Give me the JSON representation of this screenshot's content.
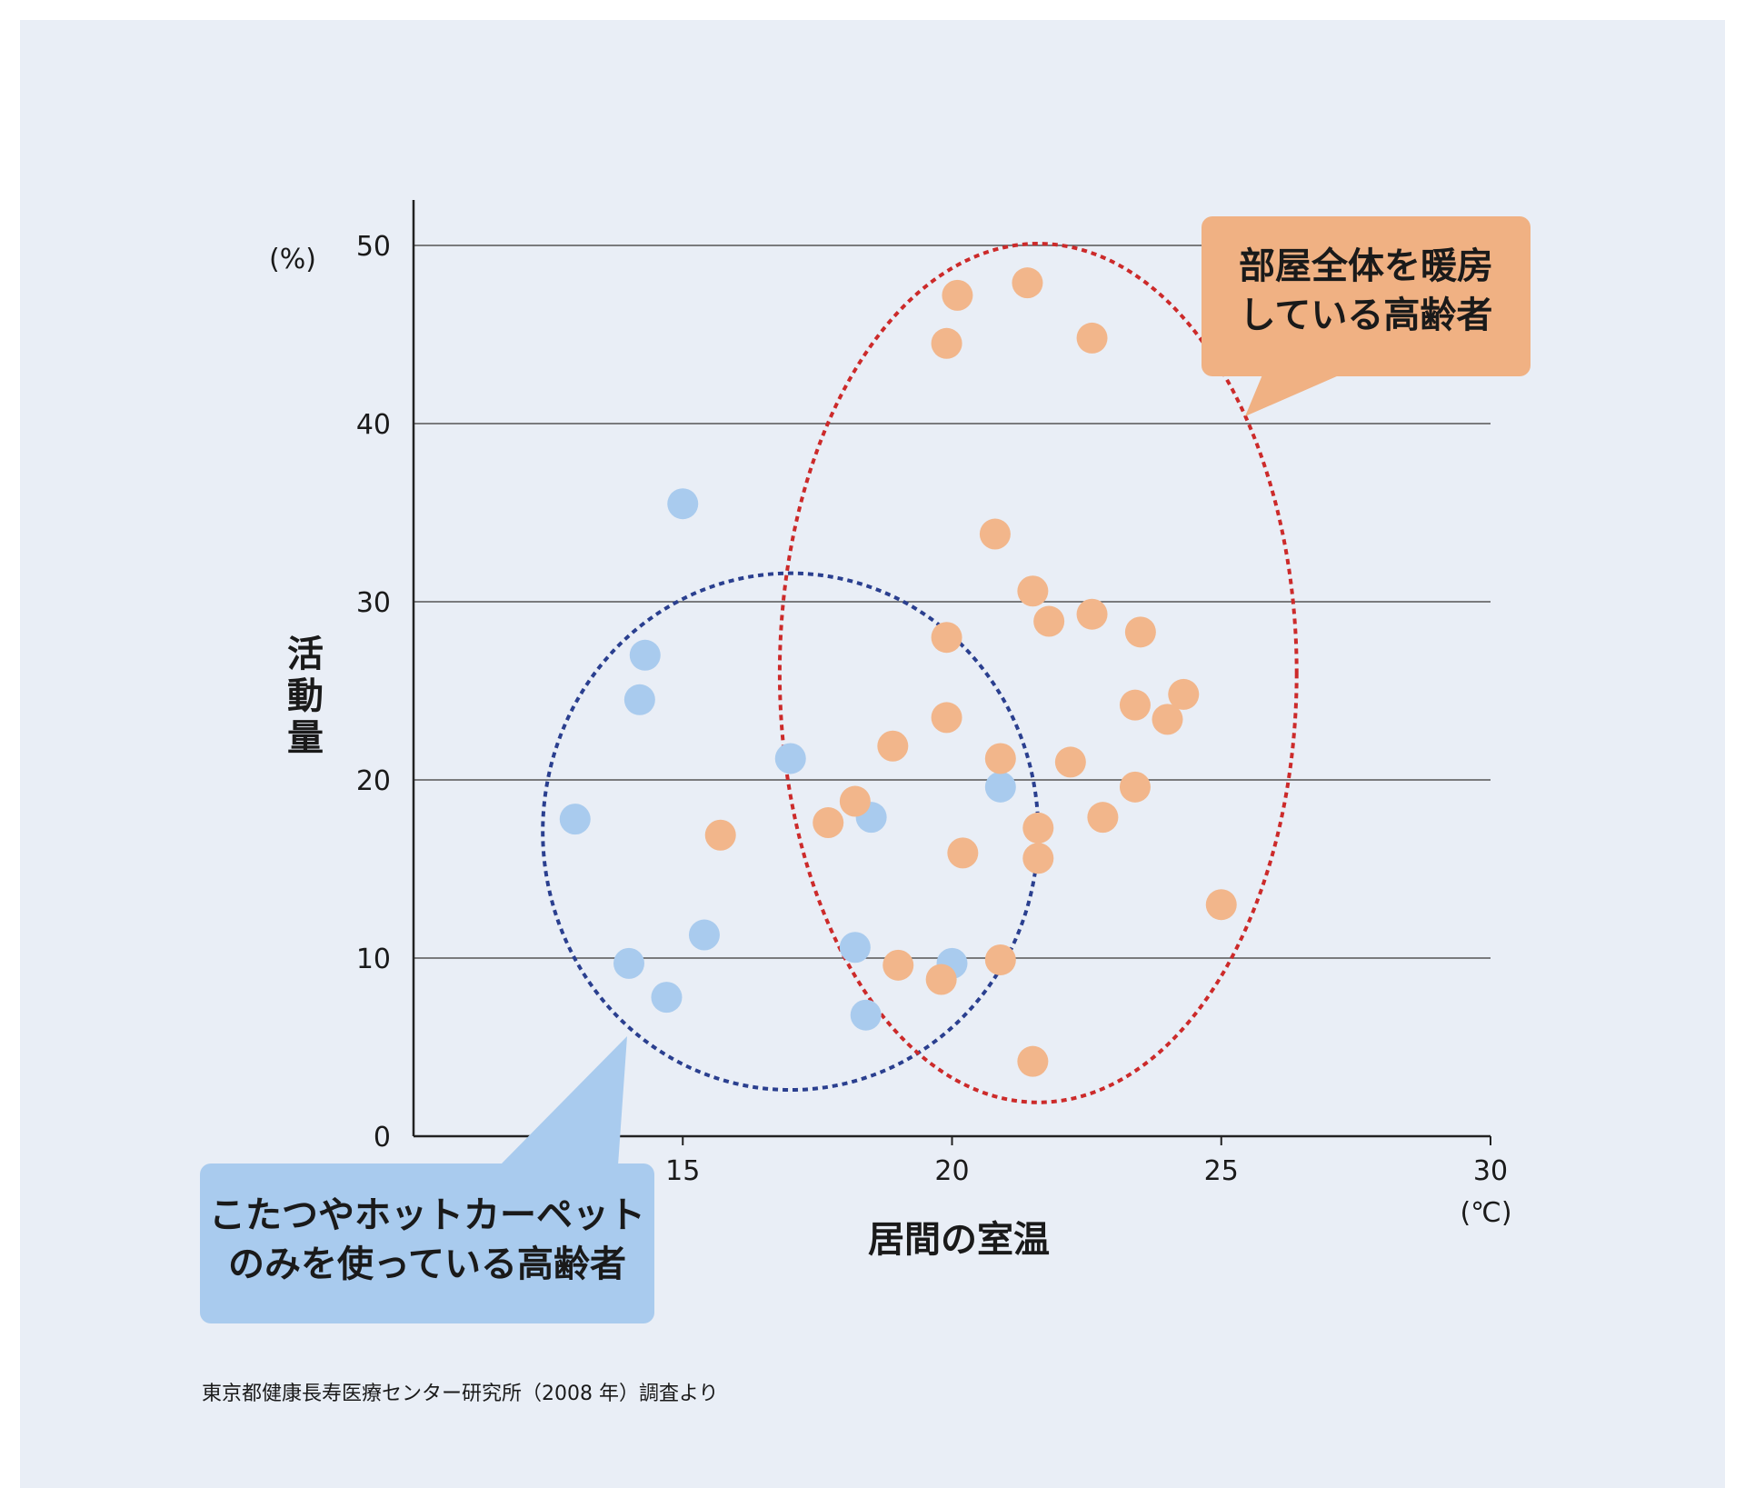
{
  "chart_data": {
    "type": "scatter",
    "xlabel": "居間の室温",
    "ylabel": "活動量",
    "x_unit": "(℃)",
    "y_unit": "(%)",
    "xlim": [
      10,
      30
    ],
    "ylim": [
      0,
      50
    ],
    "x_ticks": [
      "15",
      "20",
      "25",
      "30"
    ],
    "y_ticks": [
      "0",
      "10",
      "20",
      "30",
      "40",
      "50"
    ],
    "grid": "horizontal",
    "series": [
      {
        "color": "#a9cbee",
        "points": [
          [
            15.0,
            35.5
          ],
          [
            14.3,
            27.0
          ],
          [
            14.2,
            24.5
          ],
          [
            13.0,
            17.8
          ],
          [
            14.0,
            9.7
          ],
          [
            14.7,
            7.8
          ],
          [
            15.4,
            11.3
          ],
          [
            17.0,
            21.2
          ],
          [
            18.5,
            17.9
          ],
          [
            18.2,
            10.6
          ],
          [
            18.4,
            6.8
          ],
          [
            20.0,
            9.7
          ],
          [
            20.9,
            19.6
          ]
        ]
      },
      {
        "color": "#f2b68b",
        "points": [
          [
            20.1,
            47.2
          ],
          [
            21.4,
            47.9
          ],
          [
            19.9,
            44.5
          ],
          [
            22.6,
            44.8
          ],
          [
            20.8,
            33.8
          ],
          [
            21.5,
            30.6
          ],
          [
            21.8,
            28.9
          ],
          [
            22.6,
            29.3
          ],
          [
            23.5,
            28.3
          ],
          [
            19.9,
            28.0
          ],
          [
            23.4,
            24.2
          ],
          [
            24.3,
            24.8
          ],
          [
            24.0,
            23.4
          ],
          [
            19.9,
            23.5
          ],
          [
            18.9,
            21.9
          ],
          [
            20.9,
            21.2
          ],
          [
            22.2,
            21.0
          ],
          [
            23.4,
            19.6
          ],
          [
            18.2,
            18.8
          ],
          [
            17.7,
            17.6
          ],
          [
            22.8,
            17.9
          ],
          [
            21.6,
            17.3
          ],
          [
            15.7,
            16.9
          ],
          [
            20.2,
            15.9
          ],
          [
            21.6,
            15.6
          ],
          [
            25.0,
            13.0
          ],
          [
            19.0,
            9.6
          ],
          [
            19.8,
            8.8
          ],
          [
            20.9,
            9.9
          ],
          [
            21.5,
            4.2
          ]
        ]
      }
    ],
    "ellipses": [
      {
        "cx": 17.0,
        "cy": 17.1,
        "rx": 4.6,
        "ry": 14.5,
        "color": "#2a3f8f"
      },
      {
        "cx": 21.6,
        "cy": 26.0,
        "rx": 4.8,
        "ry": 24.1,
        "color": "#cc2a2a"
      }
    ]
  },
  "callouts": {
    "orange": {
      "line1": "部屋全体を暖房",
      "line2": "している高齢者",
      "color": "#f0b183"
    },
    "blue": {
      "line1": "こたつやホットカーペット",
      "line2": "のみを使っている高齢者",
      "color": "#a9cbee"
    }
  },
  "source": "東京都健康長寿医療センター研究所（2008 年）調査より",
  "colors": {
    "background": "#e9eef6",
    "grid": "#555555",
    "axis": "#222222"
  }
}
